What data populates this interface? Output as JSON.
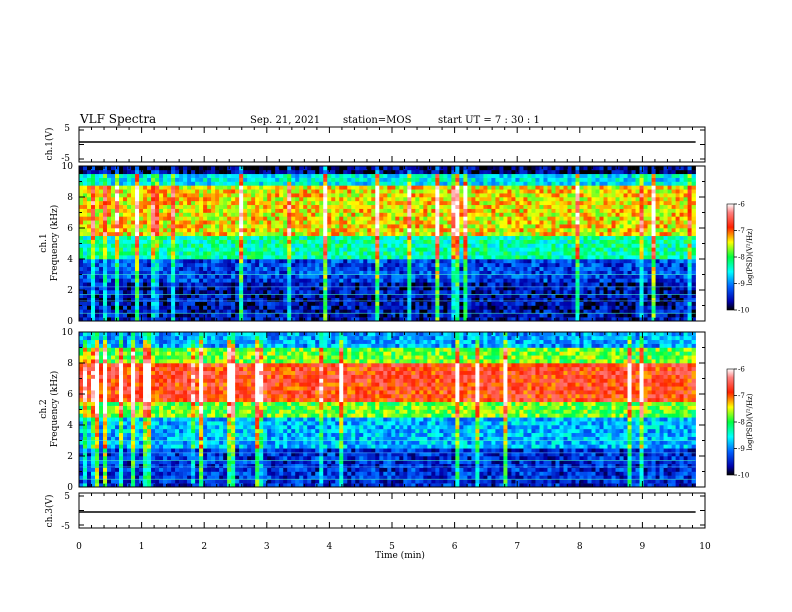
{
  "header": {
    "title": "VLF Spectra",
    "date": "Sep. 21, 2021",
    "station": "station=MOS",
    "start": "start UT =  7 : 30 : 1"
  },
  "chart_data": [
    {
      "type": "line",
      "panel": "ch1-waveform",
      "ylabel": "ch.1(V)",
      "ylim": [
        -5,
        5
      ],
      "ytick_labels": [
        "5",
        "-5"
      ],
      "x": [
        0,
        9.85
      ],
      "values": [
        0,
        0
      ]
    },
    {
      "type": "heatmap",
      "panel": "ch1-spectrogram",
      "ylabel_top": "ch.1",
      "ylabel": "Frequency (kHz)",
      "ylim": [
        0,
        10
      ],
      "ytick_labels": [
        "0",
        "2",
        "4",
        "6",
        "8",
        "10"
      ],
      "xlim": [
        0,
        10
      ],
      "colorbar": {
        "label": "log(PSD)(V²/Hz)",
        "range": [
          -10,
          -6
        ],
        "tick_labels": [
          "-6",
          "-7",
          "-8",
          "-9",
          "-10"
        ]
      },
      "bands": [
        {
          "fmin": 0.0,
          "fmax": 2.5,
          "level": -9.6
        },
        {
          "fmin": 2.5,
          "fmax": 4.0,
          "level": -9.3
        },
        {
          "fmin": 4.0,
          "fmax": 5.5,
          "level": -8.3
        },
        {
          "fmin": 5.5,
          "fmax": 8.8,
          "level": -7.4
        },
        {
          "fmin": 8.8,
          "fmax": 9.5,
          "level": -8.6
        },
        {
          "fmin": 9.5,
          "fmax": 10.0,
          "level": -9.8
        }
      ]
    },
    {
      "type": "heatmap",
      "panel": "ch2-spectrogram",
      "ylabel_top": "ch.2",
      "ylabel": "Frequency (kHz)",
      "ylim": [
        0,
        10
      ],
      "ytick_labels": [
        "0",
        "2",
        "4",
        "6",
        "8",
        "10"
      ],
      "xlim": [
        0,
        10
      ],
      "colorbar": {
        "label": "log(PSD)(V²/Hz)",
        "range": [
          -10,
          -6
        ],
        "tick_labels": [
          "-6",
          "-7",
          "-8",
          "-9",
          "-10"
        ]
      },
      "bands": [
        {
          "fmin": 0.0,
          "fmax": 2.5,
          "level": -9.4
        },
        {
          "fmin": 2.5,
          "fmax": 4.5,
          "level": -8.8
        },
        {
          "fmin": 4.5,
          "fmax": 5.5,
          "level": -7.8
        },
        {
          "fmin": 5.5,
          "fmax": 8.0,
          "level": -6.8
        },
        {
          "fmin": 8.0,
          "fmax": 9.0,
          "level": -7.8
        },
        {
          "fmin": 9.0,
          "fmax": 10.0,
          "level": -8.9
        }
      ]
    },
    {
      "type": "line",
      "panel": "ch3-waveform",
      "ylabel": "ch.3(V)",
      "ylim": [
        -5,
        5
      ],
      "ytick_labels": [
        "5",
        "-5"
      ],
      "xlabel": "Time (min)",
      "xlim": [
        0,
        10
      ],
      "xtick_labels": [
        "0",
        "1",
        "2",
        "3",
        "4",
        "5",
        "6",
        "7",
        "8",
        "9",
        "10"
      ],
      "x": [
        0,
        9.85
      ],
      "values": [
        0,
        0
      ]
    }
  ]
}
